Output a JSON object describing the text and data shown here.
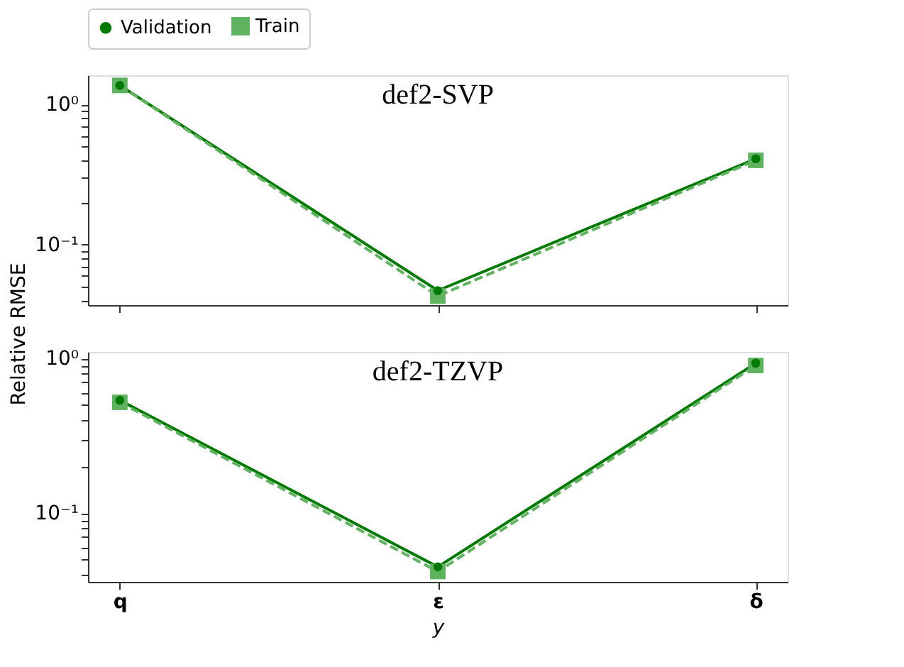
{
  "chart_data": [
    {
      "type": "line",
      "title": "def2-SVP",
      "ylabel": "Relative RMSE",
      "categories": [
        "q",
        "ε",
        "δ"
      ],
      "log": true,
      "grid": false,
      "legend": "top",
      "tick_labels": "y",
      "ylim": [
        0.037,
        1.62
      ],
      "yticks": [
        {
          "value": 1,
          "label": "10⁰"
        },
        {
          "value": 0.1,
          "label": "10⁻¹"
        },
        {
          "value": 0.04,
          "label": null
        },
        {
          "value": 0.05,
          "label": null
        },
        {
          "value": 0.06,
          "label": null
        },
        {
          "value": 0.07,
          "label": null
        },
        {
          "value": 0.08,
          "label": null
        },
        {
          "value": 0.09,
          "label": null
        },
        {
          "value": 0.2,
          "label": null
        },
        {
          "value": 0.3,
          "label": null
        },
        {
          "value": 0.4,
          "label": null
        },
        {
          "value": 0.5,
          "label": null
        },
        {
          "value": 0.6,
          "label": null
        },
        {
          "value": 0.7,
          "label": null
        },
        {
          "value": 0.8,
          "label": null
        },
        {
          "value": 0.9,
          "label": null
        }
      ],
      "series": [
        {
          "name": "Validation",
          "color": "#007a00",
          "marker": "circle",
          "line_style": "solid",
          "values": [
            1.37,
            0.047,
            0.41
          ]
        },
        {
          "name": "Train",
          "color": "#5fb35f",
          "marker": "square",
          "line_style": "dashed",
          "values": [
            1.37,
            0.043,
            0.4
          ]
        }
      ]
    },
    {
      "type": "line",
      "title": "def2-TZVP",
      "xlabel": "y",
      "categories": [
        "q",
        "ε",
        "δ"
      ],
      "log": true,
      "grid": false,
      "ylim": [
        0.036,
        1.1
      ],
      "yticks": [
        {
          "value": 1,
          "label": "10⁰"
        },
        {
          "value": 0.1,
          "label": "10⁻¹"
        },
        {
          "value": 0.04,
          "label": null
        },
        {
          "value": 0.05,
          "label": null
        },
        {
          "value": 0.06,
          "label": null
        },
        {
          "value": 0.07,
          "label": null
        },
        {
          "value": 0.08,
          "label": null
        },
        {
          "value": 0.09,
          "label": null
        },
        {
          "value": 0.2,
          "label": null
        },
        {
          "value": 0.3,
          "label": null
        },
        {
          "value": 0.4,
          "label": null
        },
        {
          "value": 0.5,
          "label": null
        },
        {
          "value": 0.6,
          "label": null
        },
        {
          "value": 0.7,
          "label": null
        },
        {
          "value": 0.8,
          "label": null
        },
        {
          "value": 0.9,
          "label": null
        }
      ],
      "series": [
        {
          "name": "Validation",
          "color": "#007a00",
          "marker": "circle",
          "line_style": "solid",
          "values": [
            0.536,
            0.045,
            0.93
          ]
        },
        {
          "name": "Train",
          "color": "#5fb35f",
          "marker": "square",
          "line_style": "dashed",
          "values": [
            0.52,
            0.042,
            0.9
          ]
        }
      ]
    }
  ]
}
